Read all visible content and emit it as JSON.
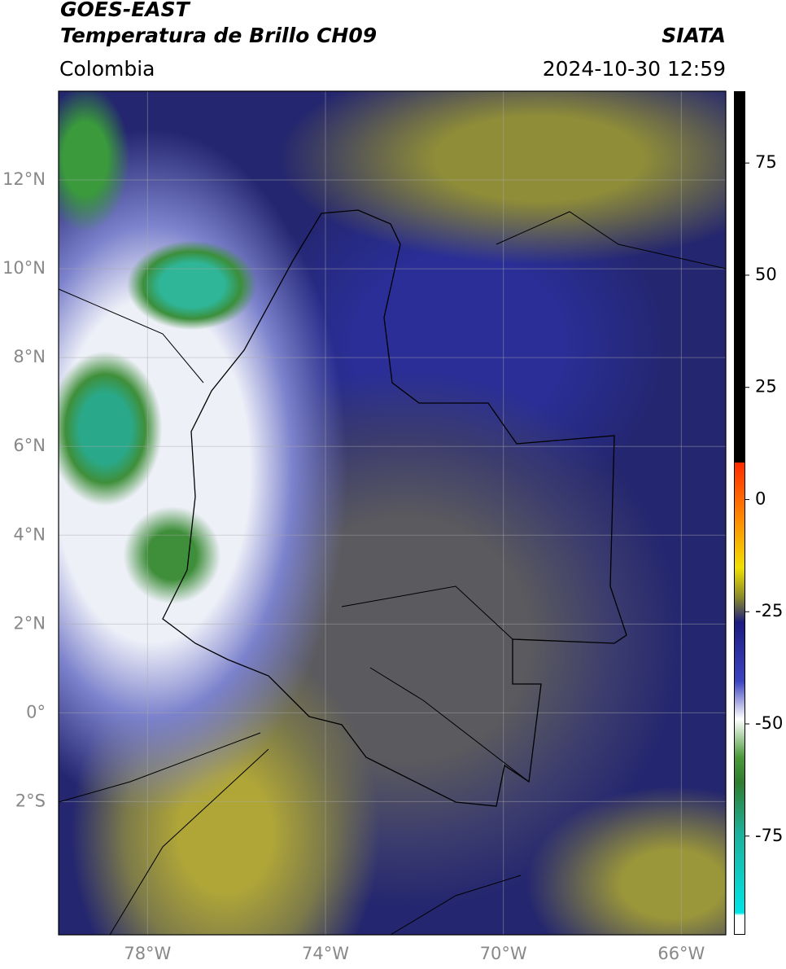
{
  "header": {
    "title_line1": "GOES-EAST",
    "title_line2": "Temperatura de Brillo CH09",
    "brand": "SIATA",
    "region": "Colombia",
    "datetime": "2024-10-30 12:59"
  },
  "map": {
    "lonlim": [
      -80,
      -65
    ],
    "latlim": [
      -5,
      14
    ],
    "lat_ticks": [
      {
        "value": 12,
        "label": "12°N"
      },
      {
        "value": 10,
        "label": "10°N"
      },
      {
        "value": 8,
        "label": "8°N"
      },
      {
        "value": 6,
        "label": "6°N"
      },
      {
        "value": 4,
        "label": "4°N"
      },
      {
        "value": 2,
        "label": "2°N"
      },
      {
        "value": 0,
        "label": "0°"
      },
      {
        "value": -2,
        "label": "2°S"
      }
    ],
    "lon_ticks": [
      {
        "value": -78,
        "label": "78°W"
      },
      {
        "value": -74,
        "label": "74°W"
      },
      {
        "value": -70,
        "label": "70°W"
      },
      {
        "value": -66,
        "label": "66°W"
      }
    ],
    "grid": true
  },
  "colorbar": {
    "lim": [
      -97,
      91
    ],
    "ticks": [
      75,
      50,
      25,
      0,
      -25,
      -50,
      -75
    ]
  }
}
